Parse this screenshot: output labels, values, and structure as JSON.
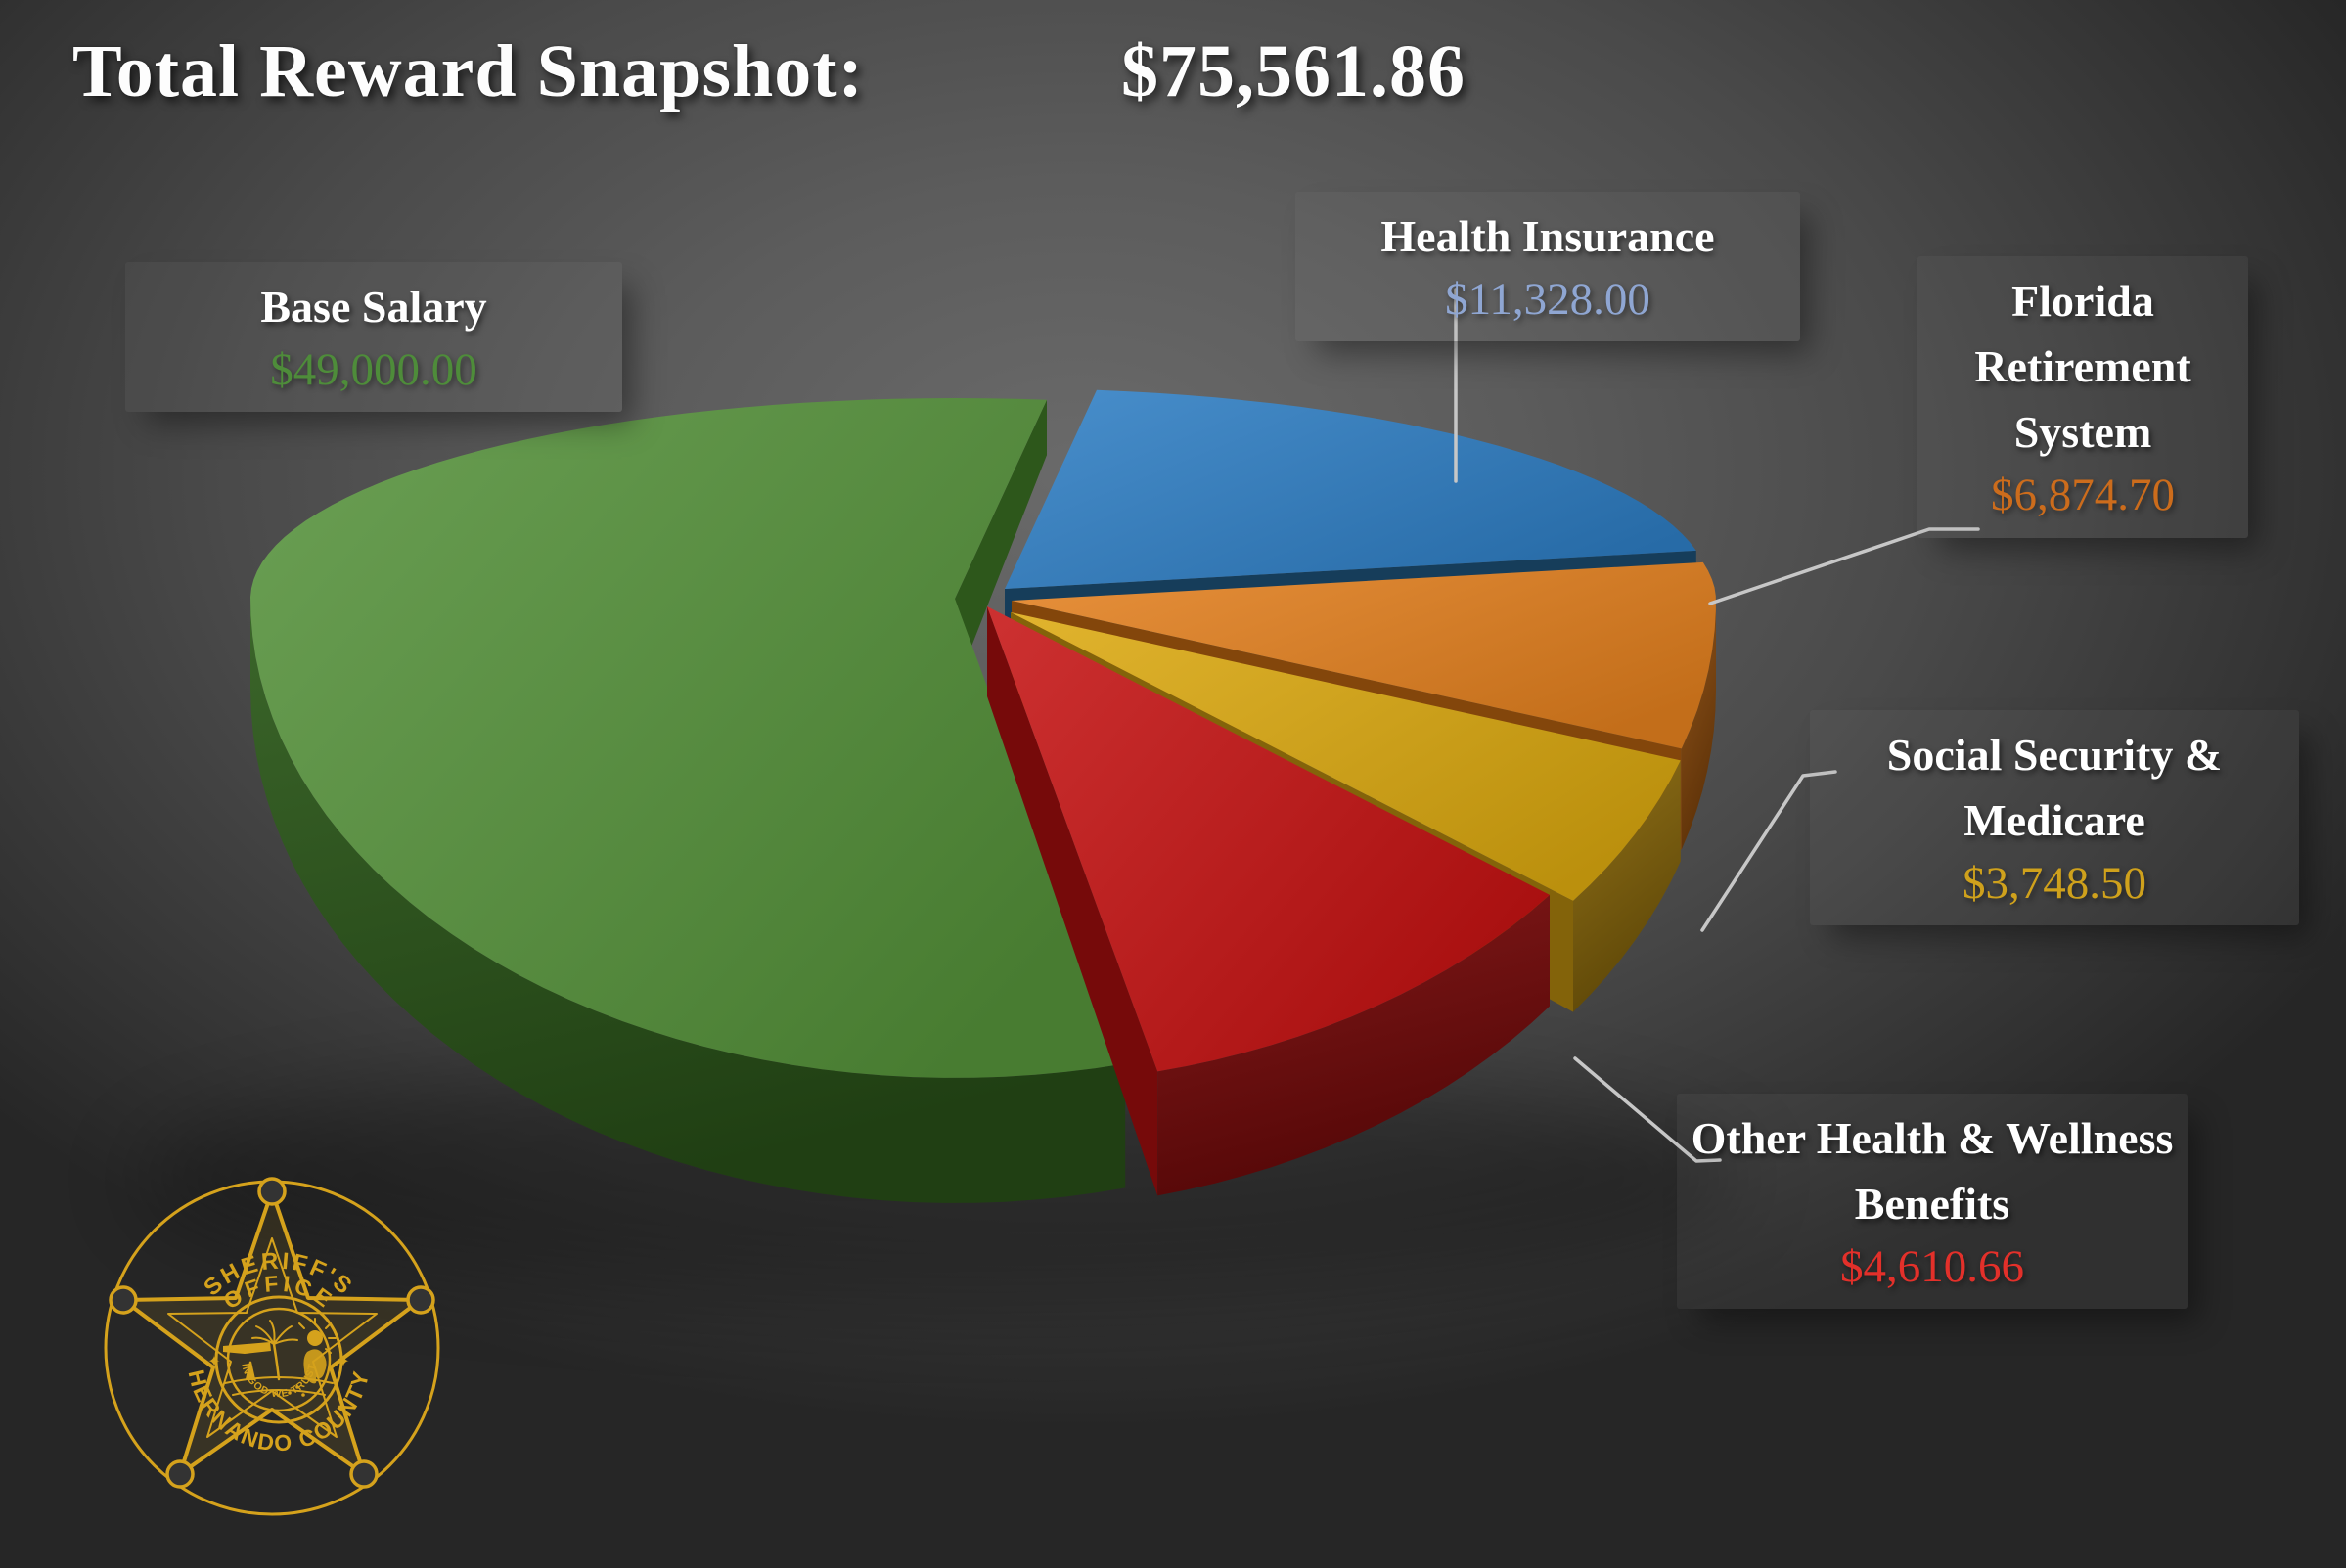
{
  "title": {
    "label": "Total Reward Snapshot:",
    "amount": "$75,561.86"
  },
  "chart_data": {
    "type": "pie",
    "style": "3d-exploded-perspective",
    "title": "Total Reward Snapshot: $75,561.86",
    "total_label": "Total Reward Snapshot:",
    "total_amount": "$75,561.86",
    "total_value": 75561.86,
    "currency": "USD",
    "legend_position": "callout-labels",
    "slices": [
      {
        "label": "Base Salary",
        "amount": "$49,000.00",
        "value": 49000.0,
        "pct": 64.85,
        "color": "#55923A",
        "side_color": "#2F5C1C",
        "amount_color": "#4E8C3A"
      },
      {
        "label": "Health Insurance",
        "amount": "$11,328.00",
        "value": 11328.0,
        "pct": 14.99,
        "color": "#2E7EC4",
        "side_color": "#17405F",
        "amount_color": "#8FA6D2"
      },
      {
        "label": "Florida Retirement System",
        "amount": "$6,874.70",
        "value": 6874.7,
        "pct": 9.1,
        "color": "#E5811F",
        "side_color": "#8A4A0C",
        "amount_color": "#CC6C1C"
      },
      {
        "label": "Social Security & Medicare",
        "amount": "$3,748.50",
        "value": 3748.5,
        "pct": 4.96,
        "color": "#DCA90F",
        "side_color": "#8A680A",
        "amount_color": "#CFA11C"
      },
      {
        "label": "Other Health & Wellness Benefits",
        "amount": "$4,610.66",
        "value": 4610.66,
        "pct": 6.1,
        "color": "#C61212",
        "side_color": "#7C0B0B",
        "amount_color": "#E3302A"
      }
    ]
  },
  "badge": {
    "arc_top_1": "SHERIFF'S",
    "arc_top_2": "OFFICE",
    "arc_bottom": "HERNANDO COUNTY",
    "motto": "IN GOD WE TRUST",
    "color": "#D5A21C"
  }
}
